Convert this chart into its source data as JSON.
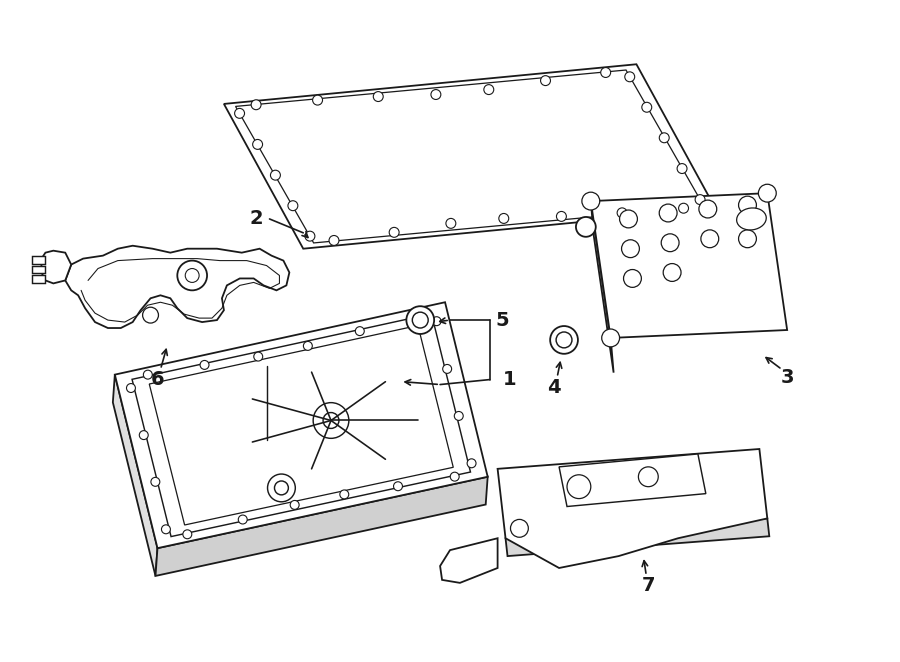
{
  "background_color": "#ffffff",
  "line_color": "#1a1a1a",
  "line_width": 1.3,
  "fig_width": 9.0,
  "fig_height": 6.62,
  "dpi": 100
}
